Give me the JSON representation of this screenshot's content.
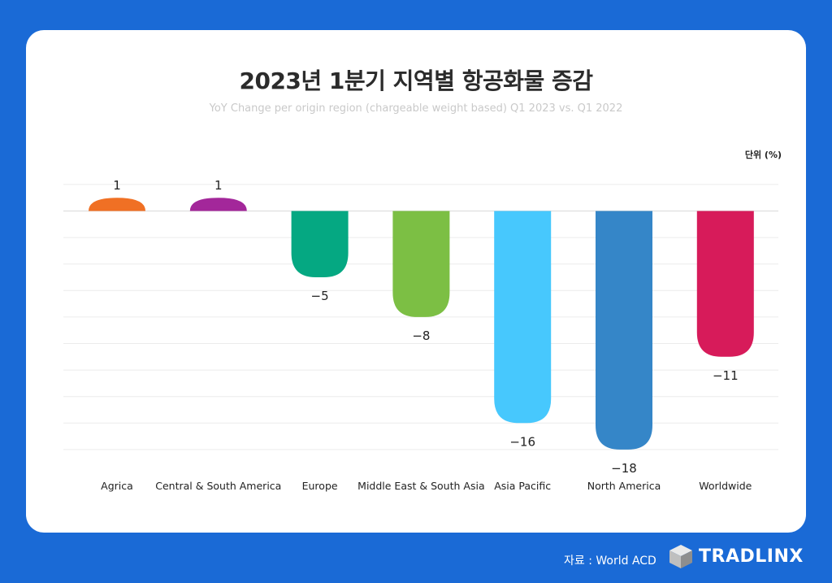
{
  "header": {
    "title": "2023년 1분기 지역별 항공화물 증감",
    "subtitle": "YoY Change per origin region (chargeable weight based) Q1 2023 vs. Q1 2022",
    "unit": "단위 (%)"
  },
  "footer": {
    "source": "자료 : World ACD",
    "brand": "TRADLINX"
  },
  "chart_data": {
    "type": "bar",
    "categories": [
      "Agrica",
      "Central & South America",
      "Europe",
      "Middle East & South Asia",
      "Asia Pacific",
      "North America",
      "Worldwide"
    ],
    "values": [
      1,
      1,
      -5,
      -8,
      -16,
      -18,
      -11
    ],
    "value_labels": [
      "1",
      "1",
      "−5",
      "−8",
      "−16",
      "−18",
      "−11"
    ],
    "colors": [
      "#f07024",
      "#a3279a",
      "#05a882",
      "#7cbf44",
      "#47c8fd",
      "#3586c8",
      "#d71b5a"
    ],
    "ylim": [
      -18,
      2
    ],
    "grid": true
  }
}
